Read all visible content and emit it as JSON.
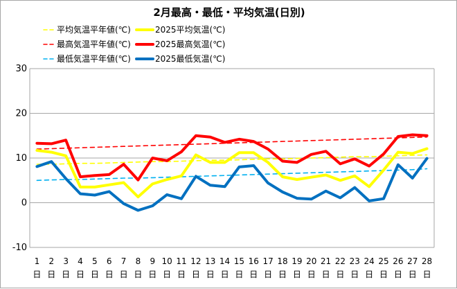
{
  "chart_data": {
    "type": "line",
    "title": "2月最高・最低・平均気温(日別)",
    "xlabel": "",
    "ylabel": "",
    "ylim": [
      -10,
      30
    ],
    "yticks": [
      -10,
      0,
      10,
      20,
      30
    ],
    "grid": true,
    "legend_position": "top",
    "categories": [
      "1",
      "2",
      "3",
      "4",
      "5",
      "6",
      "7",
      "8",
      "9",
      "10",
      "11",
      "12",
      "13",
      "14",
      "15",
      "16",
      "17",
      "18",
      "19",
      "20",
      "21",
      "22",
      "23",
      "24",
      "25",
      "26",
      "27",
      "28"
    ],
    "category_suffix": "日",
    "series": [
      {
        "name": "平均気温平年値(℃)",
        "color": "#ffff00",
        "style": "dashed",
        "values": [
          8.6,
          8.6,
          8.7,
          8.8,
          8.8,
          8.9,
          9.0,
          9.1,
          9.2,
          9.2,
          9.3,
          9.4,
          9.5,
          9.5,
          9.6,
          9.7,
          9.8,
          9.8,
          9.9,
          10.0,
          10.1,
          10.2,
          10.3,
          10.3,
          10.4,
          10.5,
          10.6,
          10.7
        ]
      },
      {
        "name": "2025平均気温(℃)",
        "color": "#ffff00",
        "style": "solid",
        "values": [
          11.7,
          11.3,
          10.5,
          3.5,
          3.5,
          4.0,
          4.5,
          1.3,
          4.2,
          5.2,
          6.0,
          10.7,
          9.0,
          9.0,
          11.2,
          11.2,
          9.0,
          5.8,
          5.2,
          5.7,
          6.2,
          5.0,
          6.0,
          3.6,
          7.3,
          11.3,
          11.0,
          12.1
        ]
      },
      {
        "name": "最高気温平年値(℃)",
        "color": "#ff0000",
        "style": "dashed",
        "values": [
          12.0,
          12.1,
          12.2,
          12.3,
          12.4,
          12.5,
          12.6,
          12.7,
          12.8,
          12.9,
          13.0,
          13.1,
          13.2,
          13.3,
          13.4,
          13.5,
          13.6,
          13.7,
          13.8,
          13.9,
          14.0,
          14.1,
          14.2,
          14.3,
          14.4,
          14.5,
          14.6,
          14.7
        ]
      },
      {
        "name": "2025最高気温(℃)",
        "color": "#ff0000",
        "style": "solid",
        "values": [
          13.3,
          13.2,
          14.0,
          5.8,
          6.1,
          6.3,
          8.6,
          5.1,
          10.0,
          9.4,
          11.4,
          15.0,
          14.7,
          13.5,
          14.2,
          13.7,
          12.0,
          9.3,
          9.0,
          10.8,
          11.5,
          8.7,
          9.8,
          8.2,
          10.9,
          14.8,
          15.2,
          15.0
        ]
      },
      {
        "name": "最低気温平年値(℃)",
        "color": "#00b0f0",
        "style": "dashed",
        "values": [
          5.0,
          5.1,
          5.2,
          5.2,
          5.3,
          5.4,
          5.5,
          5.5,
          5.6,
          5.7,
          5.8,
          5.9,
          6.0,
          6.1,
          6.2,
          6.3,
          6.4,
          6.5,
          6.6,
          6.7,
          6.8,
          6.9,
          7.0,
          7.1,
          7.2,
          7.3,
          7.4,
          7.6
        ]
      },
      {
        "name": "2025最低気温(℃)",
        "color": "#0070c0",
        "style": "solid",
        "values": [
          8.1,
          9.2,
          5.4,
          2.0,
          1.7,
          2.5,
          -0.2,
          -1.7,
          -0.7,
          1.8,
          0.9,
          5.9,
          3.9,
          3.6,
          8.0,
          8.3,
          4.4,
          2.4,
          1.0,
          0.8,
          2.6,
          1.1,
          3.4,
          0.4,
          0.9,
          8.5,
          5.5,
          9.9
        ]
      }
    ]
  }
}
